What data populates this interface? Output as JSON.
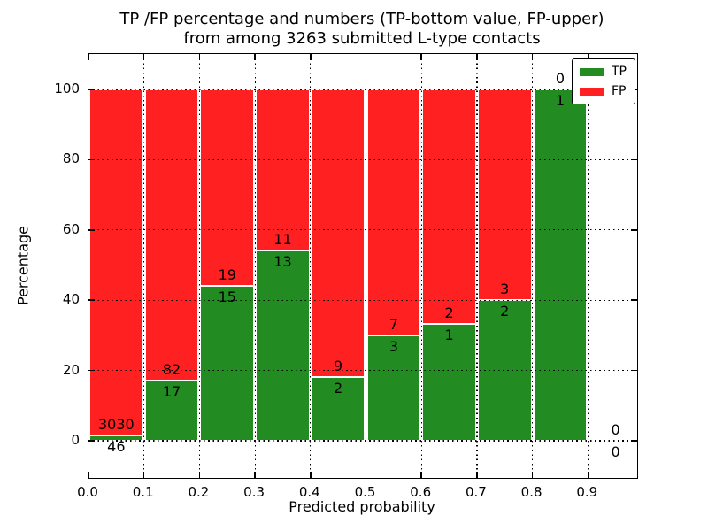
{
  "chart_data": {
    "type": "bar",
    "stacked": true,
    "normalized": "each bin scaled to 100%",
    "title_line1": "TP /FP percentage and numbers (TP-bottom value, FP-upper)",
    "title_line2": "from among 3263 submitted L-type contacts",
    "xlabel": "Predicted probability",
    "ylabel": "Percentage",
    "categories": [
      "0.0-0.1",
      "0.1-0.2",
      "0.2-0.3",
      "0.3-0.4",
      "0.4-0.5",
      "0.5-0.6",
      "0.6-0.7",
      "0.7-0.8",
      "0.8-0.9",
      "0.9-1.0"
    ],
    "series": [
      {
        "name": "TP",
        "color": "#228b22",
        "counts": [
          46,
          17,
          15,
          13,
          2,
          3,
          1,
          2,
          1,
          0
        ]
      },
      {
        "name": "FP",
        "color": "#ff2121",
        "counts": [
          3030,
          82,
          19,
          11,
          9,
          7,
          2,
          3,
          0,
          0
        ]
      }
    ],
    "tp_percent_displayed": [
      1.5,
      17.2,
      44.1,
      54.2,
      18.2,
      30.0,
      33.3,
      40.0,
      100.0,
      0.0
    ],
    "x_tick_values": [
      0.0,
      0.1,
      0.2,
      0.3,
      0.4,
      0.5,
      0.6,
      0.7,
      0.8,
      0.9
    ],
    "x_tick_labels": [
      "0.0",
      "0.1",
      "0.2",
      "0.3",
      "0.4",
      "0.5",
      "0.6",
      "0.7",
      "0.8",
      "0.9"
    ],
    "y_tick_values": [
      0,
      20,
      40,
      60,
      80,
      100
    ],
    "y_tick_labels": [
      "0",
      "20",
      "40",
      "60",
      "80",
      "100"
    ],
    "xlim": [
      0.0,
      1.0
    ],
    "ylim": [
      -11,
      110
    ],
    "grid": "dotted black, horizontal and vertical, drawn over bars",
    "legend_position": "upper right",
    "bar_edge_color": "#ffffff",
    "annotation_rule": "FP count above TP/FP boundary, TP count below boundary, centered per bin"
  }
}
